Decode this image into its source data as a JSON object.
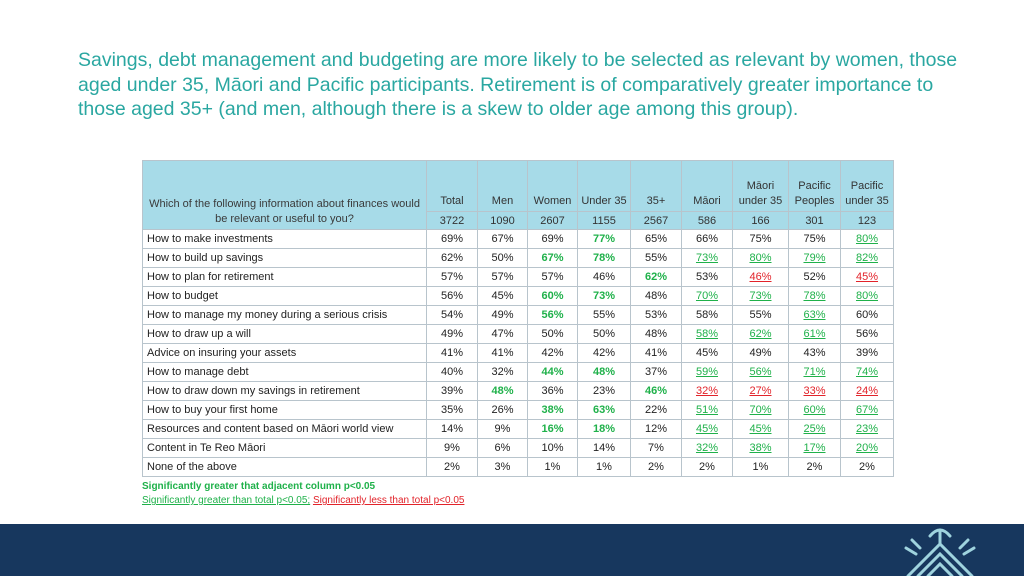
{
  "title": "Savings, debt management and budgeting are more likely to be selected as relevant by women, those aged under 35, Māori and Pacific participants.  Retirement is of comparatively greater importance to those aged 35+ (and men, although there is a skew to older age among this group).",
  "table": {
    "question": "Which of the following information about finances would be relevant or useful to you?",
    "columns": [
      {
        "label": "Total",
        "n": "3722"
      },
      {
        "label": "Men",
        "n": "1090"
      },
      {
        "label": "Women",
        "n": "2607"
      },
      {
        "label": "Under 35",
        "n": "1155"
      },
      {
        "label": "35+",
        "n": "2567"
      },
      {
        "label": "Māori",
        "n": "586"
      },
      {
        "label": "Māori under 35",
        "n": "166"
      },
      {
        "label": "Pacific Peoples",
        "n": "301"
      },
      {
        "label": "Pacific under 35",
        "n": "123"
      }
    ],
    "rows": [
      {
        "label": "How to make investments",
        "cells": [
          {
            "v": "69%",
            "s": ""
          },
          {
            "v": "67%",
            "s": ""
          },
          {
            "v": "69%",
            "s": ""
          },
          {
            "v": "77%",
            "s": "g"
          },
          {
            "v": "65%",
            "s": ""
          },
          {
            "v": "66%",
            "s": ""
          },
          {
            "v": "75%",
            "s": ""
          },
          {
            "v": "75%",
            "s": ""
          },
          {
            "v": "80%",
            "s": "gu"
          }
        ]
      },
      {
        "label": "How to build up savings",
        "cells": [
          {
            "v": "62%",
            "s": ""
          },
          {
            "v": "50%",
            "s": ""
          },
          {
            "v": "67%",
            "s": "g"
          },
          {
            "v": "78%",
            "s": "g"
          },
          {
            "v": "55%",
            "s": ""
          },
          {
            "v": "73%",
            "s": "gu"
          },
          {
            "v": "80%",
            "s": "gu"
          },
          {
            "v": "79%",
            "s": "gu"
          },
          {
            "v": "82%",
            "s": "gu"
          }
        ]
      },
      {
        "label": "How to plan for retirement",
        "cells": [
          {
            "v": "57%",
            "s": ""
          },
          {
            "v": "57%",
            "s": ""
          },
          {
            "v": "57%",
            "s": ""
          },
          {
            "v": "46%",
            "s": ""
          },
          {
            "v": "62%",
            "s": "g"
          },
          {
            "v": "53%",
            "s": ""
          },
          {
            "v": "46%",
            "s": "ru"
          },
          {
            "v": "52%",
            "s": ""
          },
          {
            "v": "45%",
            "s": "ru"
          }
        ]
      },
      {
        "label": "How to budget",
        "cells": [
          {
            "v": "56%",
            "s": ""
          },
          {
            "v": "45%",
            "s": ""
          },
          {
            "v": "60%",
            "s": "g"
          },
          {
            "v": "73%",
            "s": "g"
          },
          {
            "v": "48%",
            "s": ""
          },
          {
            "v": "70%",
            "s": "gu"
          },
          {
            "v": "73%",
            "s": "gu"
          },
          {
            "v": "78%",
            "s": "gu"
          },
          {
            "v": "80%",
            "s": "gu"
          }
        ]
      },
      {
        "label": "How to manage my money during a serious crisis",
        "cells": [
          {
            "v": "54%",
            "s": ""
          },
          {
            "v": "49%",
            "s": ""
          },
          {
            "v": "56%",
            "s": "g"
          },
          {
            "v": "55%",
            "s": ""
          },
          {
            "v": "53%",
            "s": ""
          },
          {
            "v": "58%",
            "s": ""
          },
          {
            "v": "55%",
            "s": ""
          },
          {
            "v": "63%",
            "s": "gu"
          },
          {
            "v": "60%",
            "s": ""
          }
        ]
      },
      {
        "label": "How to draw up a will",
        "cells": [
          {
            "v": "49%",
            "s": ""
          },
          {
            "v": "47%",
            "s": ""
          },
          {
            "v": "50%",
            "s": ""
          },
          {
            "v": "50%",
            "s": ""
          },
          {
            "v": "48%",
            "s": ""
          },
          {
            "v": "58%",
            "s": "gu"
          },
          {
            "v": "62%",
            "s": "gu"
          },
          {
            "v": "61%",
            "s": "gu"
          },
          {
            "v": "56%",
            "s": ""
          }
        ]
      },
      {
        "label": "Advice on insuring your assets",
        "cells": [
          {
            "v": "41%",
            "s": ""
          },
          {
            "v": "41%",
            "s": ""
          },
          {
            "v": "42%",
            "s": ""
          },
          {
            "v": "42%",
            "s": ""
          },
          {
            "v": "41%",
            "s": ""
          },
          {
            "v": "45%",
            "s": ""
          },
          {
            "v": "49%",
            "s": ""
          },
          {
            "v": "43%",
            "s": ""
          },
          {
            "v": "39%",
            "s": ""
          }
        ]
      },
      {
        "label": "How to manage debt",
        "cells": [
          {
            "v": "40%",
            "s": ""
          },
          {
            "v": "32%",
            "s": ""
          },
          {
            "v": "44%",
            "s": "g"
          },
          {
            "v": "48%",
            "s": "g"
          },
          {
            "v": "37%",
            "s": ""
          },
          {
            "v": "59%",
            "s": "gu"
          },
          {
            "v": "56%",
            "s": "gu"
          },
          {
            "v": "71%",
            "s": "gu"
          },
          {
            "v": "74%",
            "s": "gu"
          }
        ]
      },
      {
        "label": "How to draw down my savings in retirement",
        "cells": [
          {
            "v": "39%",
            "s": ""
          },
          {
            "v": "48%",
            "s": "g"
          },
          {
            "v": "36%",
            "s": ""
          },
          {
            "v": "23%",
            "s": ""
          },
          {
            "v": "46%",
            "s": "g"
          },
          {
            "v": "32%",
            "s": "ru"
          },
          {
            "v": "27%",
            "s": "ru"
          },
          {
            "v": "33%",
            "s": "ru"
          },
          {
            "v": "24%",
            "s": "ru"
          }
        ]
      },
      {
        "label": "How to buy your first home",
        "cells": [
          {
            "v": "35%",
            "s": ""
          },
          {
            "v": "26%",
            "s": ""
          },
          {
            "v": "38%",
            "s": "g"
          },
          {
            "v": "63%",
            "s": "g"
          },
          {
            "v": "22%",
            "s": ""
          },
          {
            "v": "51%",
            "s": "gu"
          },
          {
            "v": "70%",
            "s": "gu"
          },
          {
            "v": "60%",
            "s": "gu"
          },
          {
            "v": "67%",
            "s": "gu"
          }
        ]
      },
      {
        "label": "Resources and content based on Māori world view",
        "cells": [
          {
            "v": "14%",
            "s": ""
          },
          {
            "v": "9%",
            "s": ""
          },
          {
            "v": "16%",
            "s": "g"
          },
          {
            "v": "18%",
            "s": "g"
          },
          {
            "v": "12%",
            "s": ""
          },
          {
            "v": "45%",
            "s": "gu"
          },
          {
            "v": "45%",
            "s": "gu"
          },
          {
            "v": "25%",
            "s": "gu"
          },
          {
            "v": "23%",
            "s": "gu"
          }
        ]
      },
      {
        "label": "Content in Te Reo Māori",
        "cells": [
          {
            "v": "9%",
            "s": ""
          },
          {
            "v": "6%",
            "s": ""
          },
          {
            "v": "10%",
            "s": ""
          },
          {
            "v": "14%",
            "s": ""
          },
          {
            "v": "7%",
            "s": ""
          },
          {
            "v": "32%",
            "s": "gu"
          },
          {
            "v": "38%",
            "s": "gu"
          },
          {
            "v": "17%",
            "s": "gu"
          },
          {
            "v": "20%",
            "s": "gu"
          }
        ]
      },
      {
        "label": "None of the above",
        "cells": [
          {
            "v": "2%",
            "s": ""
          },
          {
            "v": "3%",
            "s": ""
          },
          {
            "v": "1%",
            "s": ""
          },
          {
            "v": "1%",
            "s": ""
          },
          {
            "v": "2%",
            "s": ""
          },
          {
            "v": "2%",
            "s": ""
          },
          {
            "v": "1%",
            "s": ""
          },
          {
            "v": "2%",
            "s": ""
          },
          {
            "v": "2%",
            "s": ""
          }
        ]
      }
    ]
  },
  "legend": {
    "line1": "Significantly greater that adjacent column p<0.05",
    "line2_green": "Significantly greater than total p<0.05;",
    "line2_red": "Significantly less than total p<0.05"
  },
  "colors": {
    "title": "#2aa7a1",
    "header_bg": "#a7dbe8",
    "sig_green": "#1fb14a",
    "sig_red": "#e2232a",
    "footer": "#17375e"
  },
  "logo_icon": "koru-fern-logo-icon"
}
